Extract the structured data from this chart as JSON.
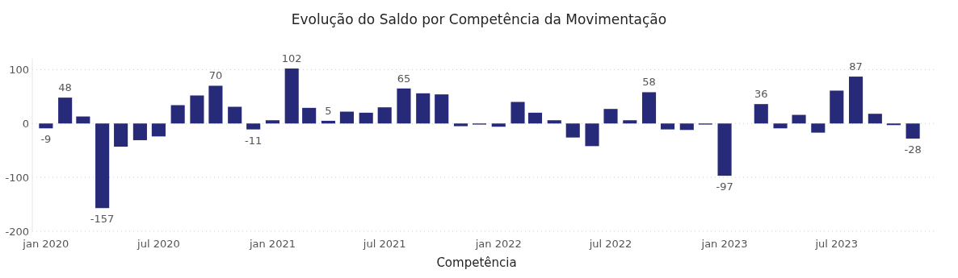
{
  "chart_data": {
    "type": "bar",
    "title": "Evolução do Saldo por Competência da Movimentação",
    "xlabel": "Competência",
    "x": [
      "2020-01",
      "2020-02",
      "2020-03",
      "2020-04",
      "2020-05",
      "2020-06",
      "2020-07",
      "2020-08",
      "2020-09",
      "2020-10",
      "2020-11",
      "2020-12",
      "2021-01",
      "2021-02",
      "2021-03",
      "2021-04",
      "2021-05",
      "2021-06",
      "2021-07",
      "2021-08",
      "2021-09",
      "2021-10",
      "2021-11",
      "2021-12",
      "2022-01",
      "2022-02",
      "2022-03",
      "2022-04",
      "2022-05",
      "2022-06",
      "2022-07",
      "2022-08",
      "2022-09",
      "2022-10",
      "2022-11",
      "2022-12",
      "2023-01",
      "2023-03",
      "2023-04",
      "2023-05",
      "2023-06",
      "2023-07",
      "2023-08",
      "2023-09",
      "2023-10",
      "2023-11"
    ],
    "values": [
      -9,
      48,
      13,
      -157,
      -43,
      -31,
      -24,
      34,
      52,
      70,
      31,
      -11,
      6,
      102,
      29,
      5,
      22,
      20,
      30,
      65,
      56,
      54,
      -5,
      -2,
      -6,
      40,
      20,
      6,
      -26,
      -42,
      27,
      6,
      58,
      -11,
      -12,
      -2,
      -97,
      36,
      -9,
      16,
      -17,
      61,
      87,
      18,
      -3,
      -28
    ],
    "value_labels": [
      "-9",
      "48",
      null,
      "-157",
      null,
      null,
      null,
      null,
      null,
      "70",
      null,
      "-11",
      null,
      "102",
      null,
      "5",
      null,
      null,
      null,
      "65",
      null,
      null,
      null,
      null,
      null,
      null,
      null,
      null,
      null,
      null,
      null,
      null,
      "58",
      null,
      null,
      null,
      "-97",
      "36",
      null,
      null,
      null,
      null,
      "87",
      null,
      null,
      "-28"
    ],
    "color": "#262a78",
    "xlim": [
      "2019-12-10",
      "2023-12-10"
    ],
    "xticks": [
      {
        "value": "2020-01",
        "label": "jan 2020"
      },
      {
        "value": "2020-07",
        "label": "jul 2020"
      },
      {
        "value": "2021-01",
        "label": "jan 2021"
      },
      {
        "value": "2021-07",
        "label": "jul 2021"
      },
      {
        "value": "2022-01",
        "label": "jan 2022"
      },
      {
        "value": "2022-07",
        "label": "jul 2022"
      },
      {
        "value": "2023-01",
        "label": "jan 2023"
      },
      {
        "value": "2023-07",
        "label": "jul 2023"
      }
    ],
    "ylim": [
      -200,
      120
    ],
    "yticks": [
      -200,
      -100,
      0,
      100
    ],
    "grid": "y"
  }
}
